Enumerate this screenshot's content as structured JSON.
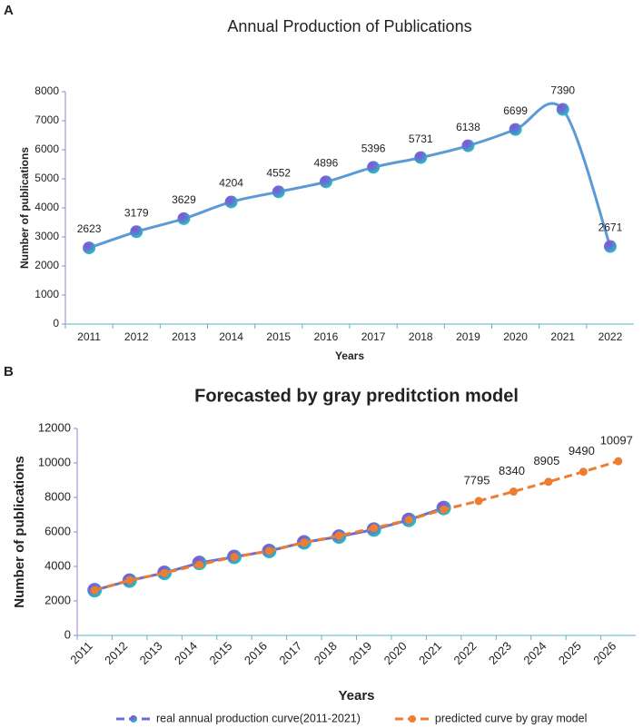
{
  "chart_data": [
    {
      "panel_label": "A",
      "type": "line",
      "title": "Annual Production of Publications",
      "x_label": "Years",
      "y_label": "Number of publications",
      "categories": [
        "2011",
        "2012",
        "2013",
        "2014",
        "2015",
        "2016",
        "2017",
        "2018",
        "2019",
        "2020",
        "2021",
        "2022"
      ],
      "series": [
        {
          "color": "#5b9bd5",
          "values": [
            2623,
            3179,
            3629,
            4204,
            4552,
            4896,
            5396,
            5731,
            6138,
            6699,
            7390,
            2671
          ]
        }
      ],
      "ylim": [
        0,
        8000
      ],
      "yticks": [
        0,
        1000,
        2000,
        3000,
        4000,
        5000,
        6000,
        7000,
        8000
      ],
      "data_labels": true,
      "smooth": true
    },
    {
      "panel_label": "B",
      "type": "line",
      "title": "Forecasted by gray preditction model",
      "x_label": "Years",
      "y_label": "Number of publications",
      "categories": [
        "2011",
        "2012",
        "2013",
        "2014",
        "2015",
        "2016",
        "2017",
        "2018",
        "2019",
        "2020",
        "2021",
        "2022",
        "2023",
        "2024",
        "2025",
        "2026"
      ],
      "series": [
        {
          "name": "real annual production curve(2011-2021)",
          "color": "#6a6fd0",
          "values": [
            2623,
            3179,
            3629,
            4204,
            4552,
            4896,
            5396,
            5731,
            6138,
            6699,
            7390,
            null,
            null,
            null,
            null,
            null
          ]
        },
        {
          "name": "predicted curve by gray model",
          "color": "#ed7d31",
          "dash": true,
          "values": [
            2623,
            3200,
            3620,
            4100,
            4550,
            4900,
            5380,
            5780,
            6220,
            6700,
            7300,
            7795,
            8340,
            8905,
            9490,
            10097
          ],
          "value_labels": [
            null,
            null,
            null,
            null,
            null,
            null,
            null,
            null,
            null,
            null,
            null,
            "7795",
            "8340",
            "8905",
            "9490",
            "10097"
          ]
        }
      ],
      "ylim": [
        0,
        12000
      ],
      "yticks": [
        0,
        2000,
        4000,
        6000,
        8000,
        10000,
        12000
      ],
      "legend": "bottom"
    }
  ]
}
